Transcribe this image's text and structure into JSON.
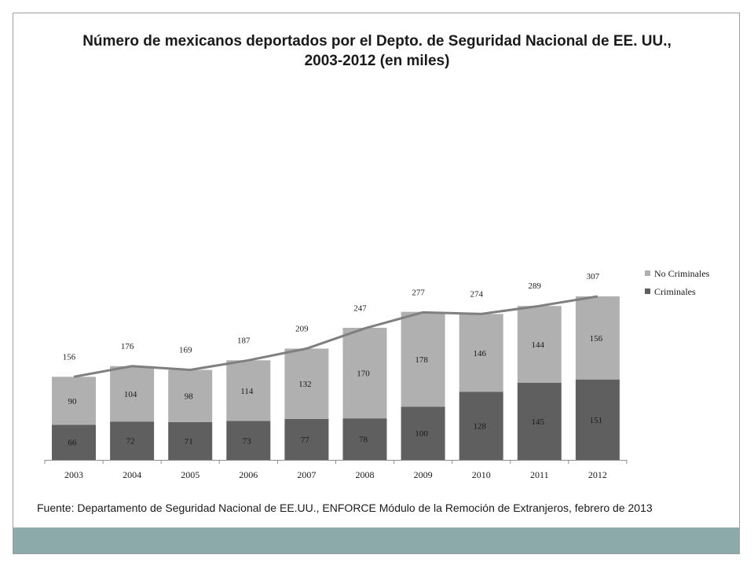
{
  "title_line1": "Número de mexicanos deportados por el Depto. de Seguridad Nacional de EE. UU.,",
  "title_line2": "2003-2012 (en miles)",
  "source": "Fuente: Departamento de Seguridad Nacional de EE.UU., ENFORCE Módulo de la Remoción de Extranjeros, febrero de 2013",
  "colors": {
    "criminales": "#5f5f5f",
    "no_criminales": "#b0b0b0",
    "total_line": "#7f7f7f",
    "footer_band": "#8caaa9"
  },
  "chart_data": {
    "type": "bar",
    "stacked": true,
    "title": "Número de mexicanos deportados por el Depto. de Seguridad Nacional de EE. UU., 2003-2012 (en miles)",
    "categories": [
      "2003",
      "2004",
      "2005",
      "2006",
      "2007",
      "2008",
      "2009",
      "2010",
      "2011",
      "2012"
    ],
    "series": [
      {
        "name": "Criminales",
        "values": [
          66,
          72,
          71,
          73,
          77,
          78,
          100,
          128,
          145,
          151
        ]
      },
      {
        "name": "No Criminales",
        "values": [
          90,
          104,
          98,
          114,
          132,
          170,
          178,
          146,
          144,
          156
        ]
      }
    ],
    "totals": {
      "type": "line",
      "values": [
        156,
        176,
        169,
        187,
        209,
        247,
        277,
        274,
        289,
        307
      ]
    },
    "ylim": [
      0,
      350
    ],
    "grid": false,
    "legend_position": "right",
    "legend": [
      "No Criminales",
      "Criminales"
    ]
  }
}
